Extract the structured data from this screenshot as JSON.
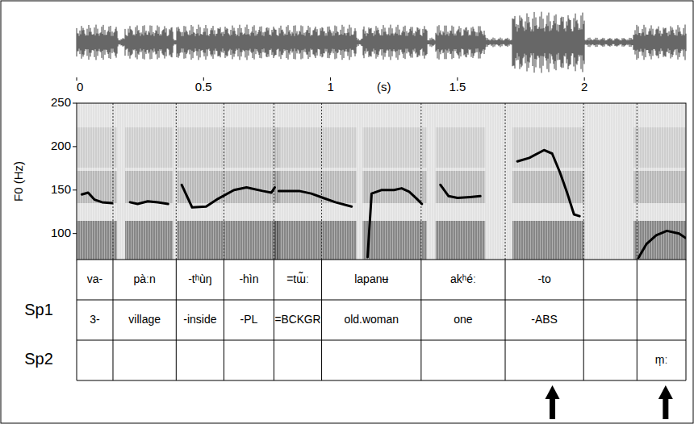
{
  "chart_data": {
    "type": "line",
    "y_label": "F0 (Hz)",
    "x_label": "(s)",
    "xlim": [
      0,
      2.4
    ],
    "xticks": [
      0,
      0.5,
      1,
      1.5,
      2
    ],
    "ylim": [
      70,
      250
    ],
    "yticks": [
      100,
      150,
      200,
      250
    ],
    "grid": false,
    "series": [
      {
        "color": "#000000",
        "x": [
          0.02,
          0.045,
          0.07,
          0.1,
          0.14,
          0.17,
          0.21,
          0.24,
          0.28,
          0.32,
          0.36,
          0.39,
          0.414,
          0.455,
          0.51,
          0.557,
          0.62,
          0.669,
          0.732,
          0.767,
          0.78,
          0.788,
          0.796,
          0.876,
          0.924,
          0.971,
          1.019,
          1.083,
          1.11,
          1.146,
          1.162,
          1.2,
          1.25,
          1.28,
          1.31,
          1.34,
          1.36,
          1.4,
          1.433,
          1.465,
          1.5,
          1.55,
          1.59,
          1.66,
          1.736,
          1.783,
          1.841,
          1.873,
          1.904,
          1.933,
          1.959,
          1.981,
          2.1,
          2.213,
          2.245,
          2.283,
          2.325,
          2.373,
          2.398
        ],
        "values": [
          145,
          147,
          139,
          136,
          135,
          null,
          136,
          134,
          137,
          136,
          134,
          null,
          156,
          130,
          131,
          140,
          150,
          153,
          149,
          147,
          153,
          null,
          149,
          149,
          146,
          141,
          136,
          131,
          null,
          73,
          146,
          150,
          150,
          152,
          148,
          140,
          134,
          null,
          156,
          143,
          141,
          142,
          143,
          null,
          183,
          187,
          196,
          192,
          170,
          146,
          122,
          120,
          null,
          72,
          88,
          98,
          103,
          100,
          95
        ]
      }
    ],
    "boundaries": [
      0,
      0.143,
      0.392,
      0.58,
      0.777,
      0.965,
      1.357,
      1.688,
      1.997,
      2.207,
      2.4
    ],
    "tiers": [
      {
        "label": "Sp1",
        "rows": [
          [
            "va-",
            "pàːn",
            "-tʰùŋ",
            "-hìn",
            "=tɯ̃ː",
            "lapanʉ",
            "akʰéː",
            "-to",
            null,
            null
          ],
          [
            "3-",
            "village",
            "-inside",
            "-PL",
            "=BCKGR",
            "old.woman",
            "one",
            "-ABS",
            null,
            null
          ]
        ]
      },
      {
        "label": "Sp2",
        "rows": [
          [
            null,
            null,
            null,
            null,
            null,
            null,
            null,
            null,
            null,
            "m̩ː"
          ]
        ]
      }
    ],
    "arrows": [
      1.874,
      2.32
    ]
  }
}
